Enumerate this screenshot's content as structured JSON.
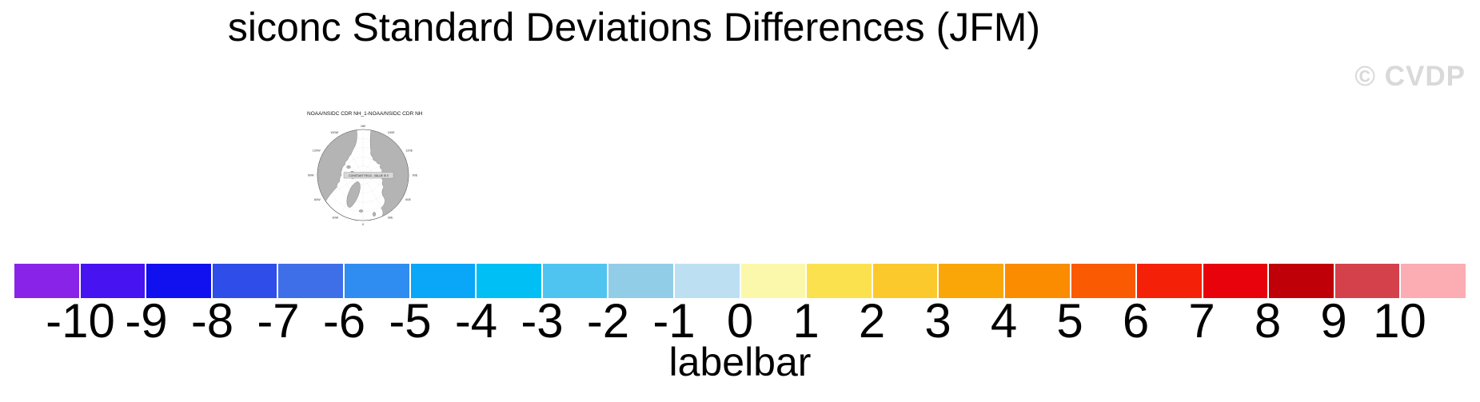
{
  "title": "siconc Standard Deviations Differences (JFM)",
  "watermark": "© CVDP",
  "map_panel": {
    "title": "NOAA/NSIDC CDR NH_1-NOAA/NSIDC CDR NH",
    "center_label": "CONSTANT FIELD - VALUE IS 0",
    "grid_labels": [
      {
        "text": "180",
        "deg": 0
      },
      {
        "text": "150E",
        "deg": 30
      },
      {
        "text": "120E",
        "deg": 60
      },
      {
        "text": "90E",
        "deg": 90
      },
      {
        "text": "60E",
        "deg": 120
      },
      {
        "text": "30E",
        "deg": 150
      },
      {
        "text": "0",
        "deg": 180
      },
      {
        "text": "30W",
        "deg": 210
      },
      {
        "text": "60W",
        "deg": 240
      },
      {
        "text": "90W",
        "deg": 270
      },
      {
        "text": "120W",
        "deg": 300
      },
      {
        "text": "150W",
        "deg": 330
      }
    ]
  },
  "chart_data": {
    "type": "colorbar",
    "caption": "labelbar",
    "tick_labels": [
      "-10",
      "-9",
      "-8",
      "-7",
      "-6",
      "-5",
      "-4",
      "-3",
      "-2",
      "-1",
      "0",
      "1",
      "2",
      "3",
      "4",
      "5",
      "6",
      "7",
      "8",
      "9",
      "10"
    ],
    "tick_values": [
      -10,
      -9,
      -8,
      -7,
      -6,
      -5,
      -4,
      -3,
      -2,
      -1,
      0,
      1,
      2,
      3,
      4,
      5,
      6,
      7,
      8,
      9,
      10
    ],
    "label_alignment": "box_edges",
    "box_colors": [
      "#8A23E8",
      "#4713F0",
      "#1111F0",
      "#2F4DE8",
      "#3F6FE8",
      "#2F8DF2",
      "#0AA6F7",
      "#00BFF5",
      "#4FC4F0",
      "#92CDE8",
      "#BCE0F2",
      "#FBF8AB",
      "#FCE14F",
      "#FCC92D",
      "#FBA608",
      "#FB8C00",
      "#FA5A02",
      "#F52008",
      "#E8030C",
      "#BF0008",
      "#D4414B",
      "#FBADB3"
    ],
    "colors": {
      "land": "#b4b4b4",
      "coast_stroke": "#555555",
      "map_outline": "#333333",
      "grid": "#aaaaaa",
      "watermark": "#d9d9d9",
      "center_box_fill": "#d8d8d8"
    }
  }
}
